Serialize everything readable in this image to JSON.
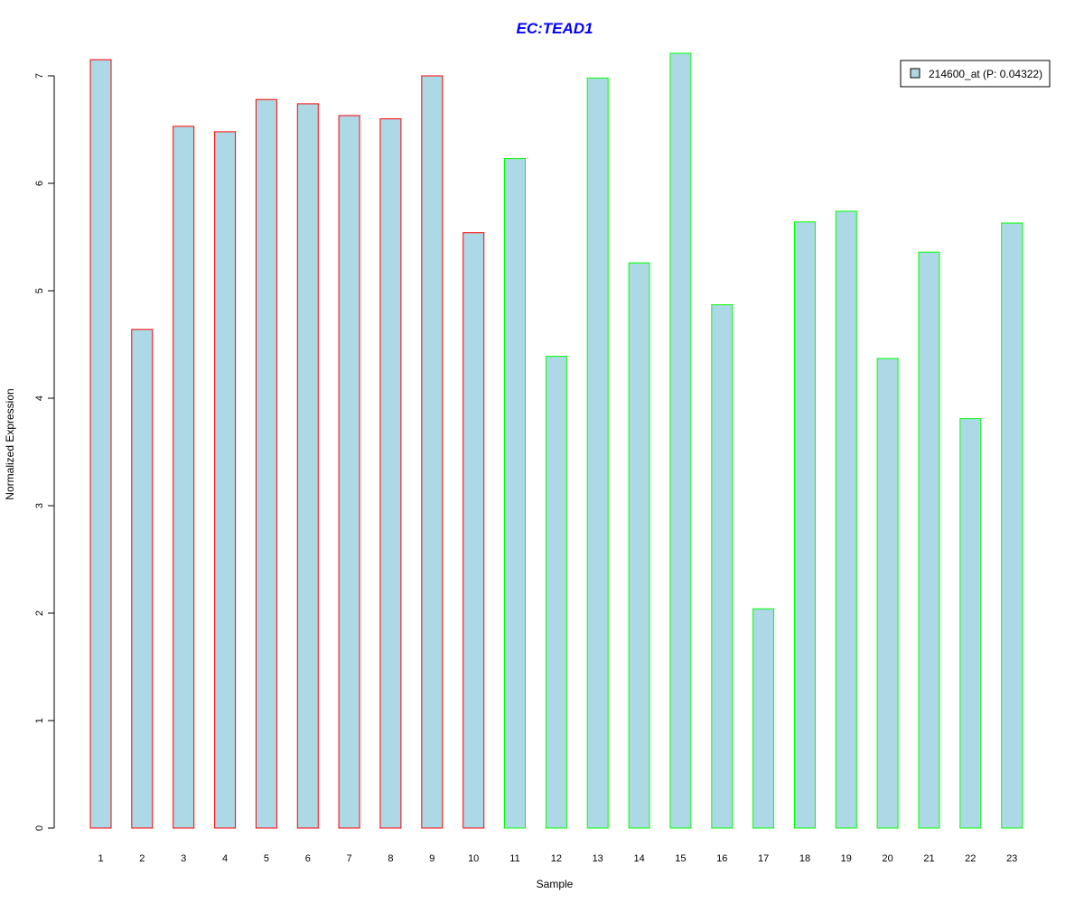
{
  "chart_data": {
    "type": "bar",
    "title": "EC:TEAD1",
    "xlabel": "Sample",
    "ylabel": "Normalized Expression",
    "ylim": [
      0,
      7.3
    ],
    "yticks": [
      0,
      1,
      2,
      3,
      4,
      5,
      6,
      7
    ],
    "categories": [
      "1",
      "2",
      "3",
      "4",
      "5",
      "6",
      "7",
      "8",
      "9",
      "10",
      "11",
      "12",
      "13",
      "14",
      "15",
      "16",
      "17",
      "18",
      "19",
      "20",
      "21",
      "22",
      "23"
    ],
    "series": [
      {
        "name": "214600_at (P: 0.04322)",
        "values": [
          7.15,
          4.64,
          6.53,
          6.48,
          6.78,
          6.74,
          6.63,
          6.6,
          7.0,
          5.54,
          6.23,
          4.39,
          6.98,
          5.26,
          7.21,
          4.87,
          2.04,
          5.64,
          5.74,
          4.37,
          5.36,
          3.81,
          5.63
        ],
        "groups": [
          "red",
          "red",
          "red",
          "red",
          "red",
          "red",
          "red",
          "red",
          "red",
          "red",
          "green",
          "green",
          "green",
          "green",
          "green",
          "green",
          "green",
          "green",
          "green",
          "green",
          "green",
          "green",
          "green"
        ]
      }
    ],
    "legend": "top-right",
    "grid": false
  },
  "colors": {
    "title": "#0000ff",
    "bar_fill": "#add8e6",
    "group_red": "#ff0000",
    "group_green": "#00ff00",
    "axis": "#000000"
  }
}
